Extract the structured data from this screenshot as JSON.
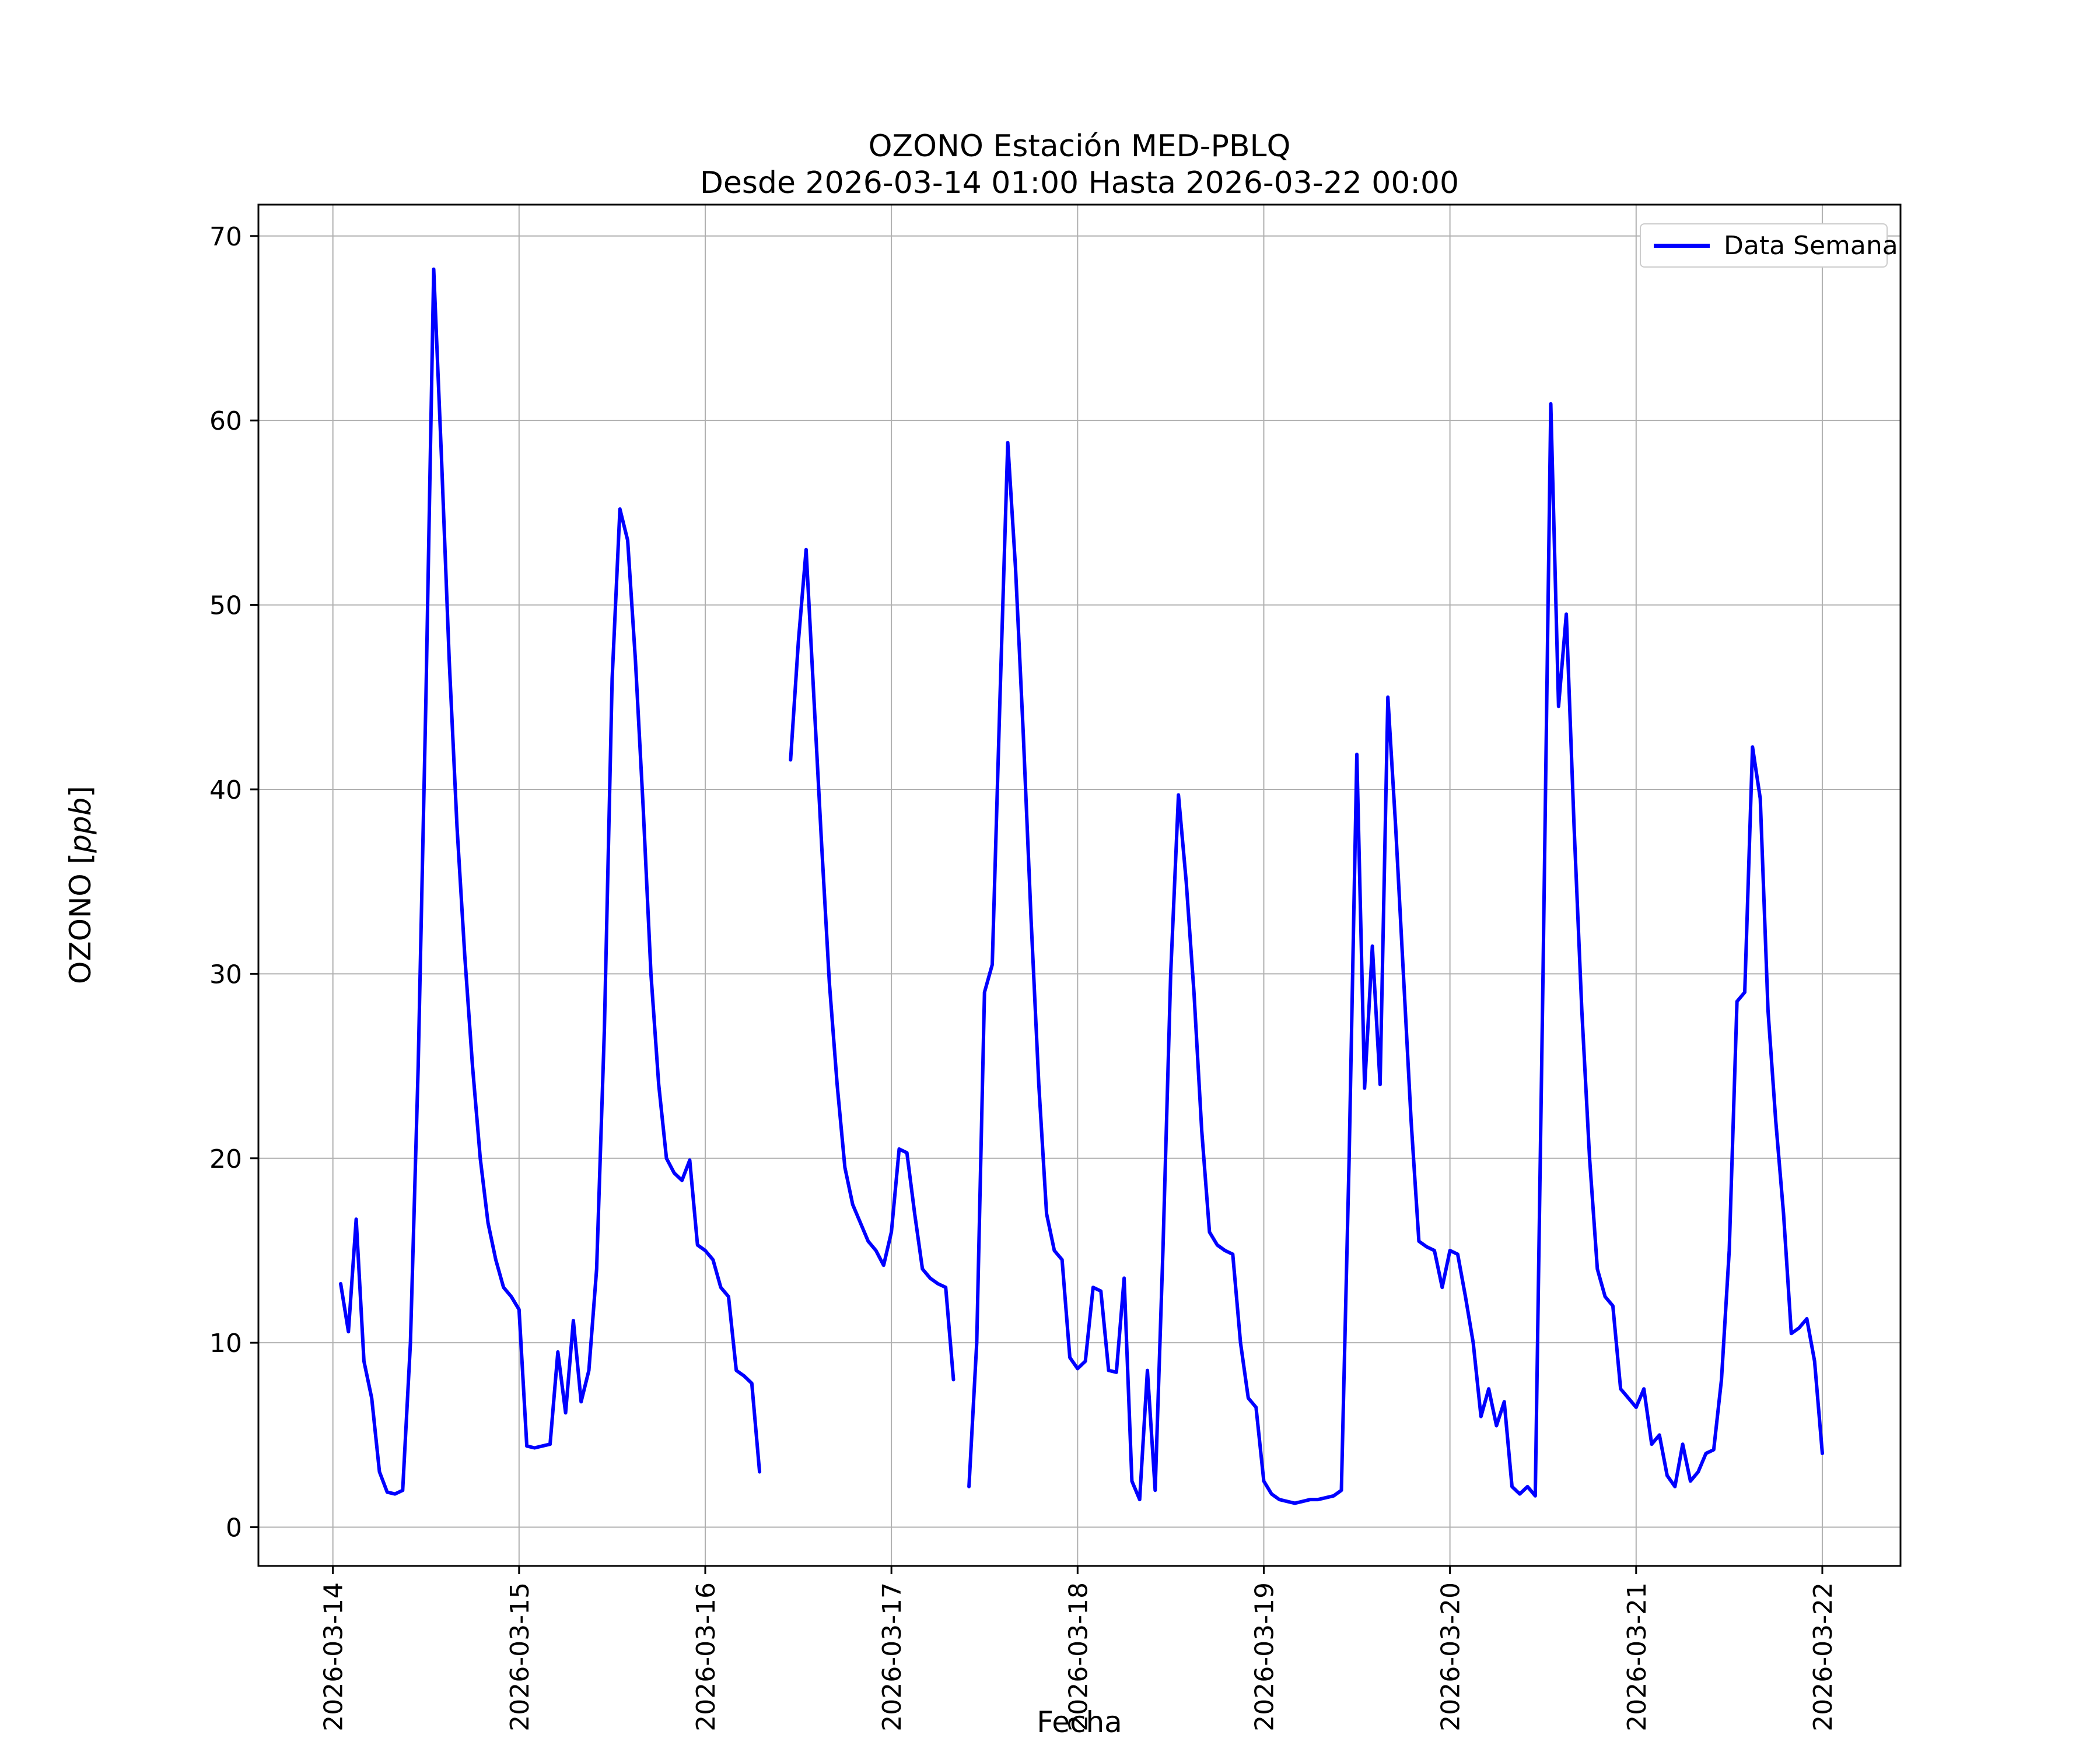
{
  "figure": {
    "title_line1": "OZONO Estación MED-PBLQ",
    "title_line2": "Desde 2026-03-14 01:00 Hasta 2026-03-22 00:00",
    "xlabel": "Fecha",
    "ylabel_prefix": "OZONO [",
    "ylabel_italic": "ppb",
    "ylabel_suffix": "]",
    "background_color": "#ffffff"
  },
  "legend": {
    "label": "Data Semana",
    "line_color": "#0000FF",
    "border_color": "#cccccc",
    "position": "upper right"
  },
  "chart_data": {
    "type": "line",
    "title": "OZONO Estación MED-PBLQ\nDesde 2026-03-14 01:00 Hasta 2026-03-22 00:00",
    "xlabel": "Fecha",
    "ylabel": "OZONO [ppb]",
    "legend_entries": [
      "Data Semana"
    ],
    "legend_position": "upper right",
    "grid": true,
    "grid_color": "#b0b0b0",
    "axis_color": "#000000",
    "x_description": "hourly samples; first point 2026-03-14 01:00, last point 2026-03-22 00:00",
    "start_hour": 1,
    "x_tick_labels": [
      "2026-03-14",
      "2026-03-15",
      "2026-03-16",
      "2026-03-17",
      "2026-03-18",
      "2026-03-19",
      "2026-03-20",
      "2026-03-21",
      "2026-03-22"
    ],
    "x_ticks_days": [
      0,
      1,
      2,
      3,
      4,
      5,
      6,
      7,
      8
    ],
    "y_ticks": [
      0,
      10,
      20,
      30,
      40,
      50,
      60,
      70
    ],
    "ylim": [
      -2.1,
      71.7
    ],
    "xlim_days": [
      -0.4,
      8.42
    ],
    "series": [
      {
        "name": "Data Semana",
        "color": "#0000FF",
        "values": [
          13.2,
          10.6,
          16.7,
          9.0,
          7.0,
          3.0,
          1.9,
          1.8,
          2.0,
          10.0,
          25.0,
          45.0,
          68.2,
          58.0,
          47.0,
          38.0,
          31.0,
          25.0,
          20.0,
          16.5,
          14.5,
          13.0,
          12.5,
          11.8,
          4.4,
          4.3,
          4.4,
          4.5,
          9.5,
          6.2,
          11.2,
          6.8,
          8.5,
          14.0,
          27.0,
          46.0,
          55.2,
          53.5,
          47.0,
          39.0,
          30.0,
          24.0,
          20.0,
          19.2,
          18.8,
          19.9,
          15.3,
          15.0,
          14.5,
          13.0,
          12.5,
          8.5,
          8.2,
          7.8,
          3.0,
          null,
          null,
          null,
          41.6,
          48.0,
          53.0,
          45.0,
          37.0,
          29.5,
          24.0,
          19.5,
          17.5,
          16.5,
          15.5,
          15.0,
          14.2,
          16.0,
          20.5,
          20.3,
          17.0,
          14.0,
          13.5,
          13.2,
          13.0,
          8.0,
          null,
          2.2,
          10.0,
          29.0,
          30.5,
          45.0,
          58.8,
          52.0,
          43.0,
          33.0,
          24.0,
          17.0,
          15.0,
          14.5,
          9.2,
          8.6,
          9.0,
          13.0,
          12.8,
          8.5,
          8.4,
          13.5,
          2.5,
          1.5,
          8.5,
          2.0,
          15.0,
          30.0,
          39.7,
          35.0,
          29.0,
          21.5,
          16.0,
          15.3,
          15.0,
          14.8,
          10.0,
          7.0,
          6.5,
          2.5,
          1.8,
          1.5,
          1.4,
          1.3,
          1.4,
          1.5,
          1.5,
          1.6,
          1.7,
          2.0,
          20.0,
          41.9,
          23.8,
          31.5,
          24.0,
          45.0,
          38.0,
          30.0,
          22.0,
          15.5,
          15.2,
          15.0,
          13.0,
          15.0,
          14.8,
          12.5,
          10.0,
          6.0,
          7.5,
          5.5,
          6.8,
          2.2,
          1.8,
          2.2,
          1.7,
          30.0,
          60.9,
          44.5,
          49.5,
          38.0,
          28.0,
          20.0,
          14.0,
          12.5,
          12.0,
          7.5,
          7.0,
          6.5,
          7.5,
          4.5,
          5.0,
          2.8,
          2.2,
          4.5,
          2.5,
          3.0,
          4.0,
          4.2,
          8.0,
          15.0,
          28.5,
          29.0,
          42.3,
          39.5,
          28.0,
          22.0,
          17.0,
          10.5,
          10.8,
          11.3,
          9.0,
          4.0
        ]
      }
    ]
  }
}
